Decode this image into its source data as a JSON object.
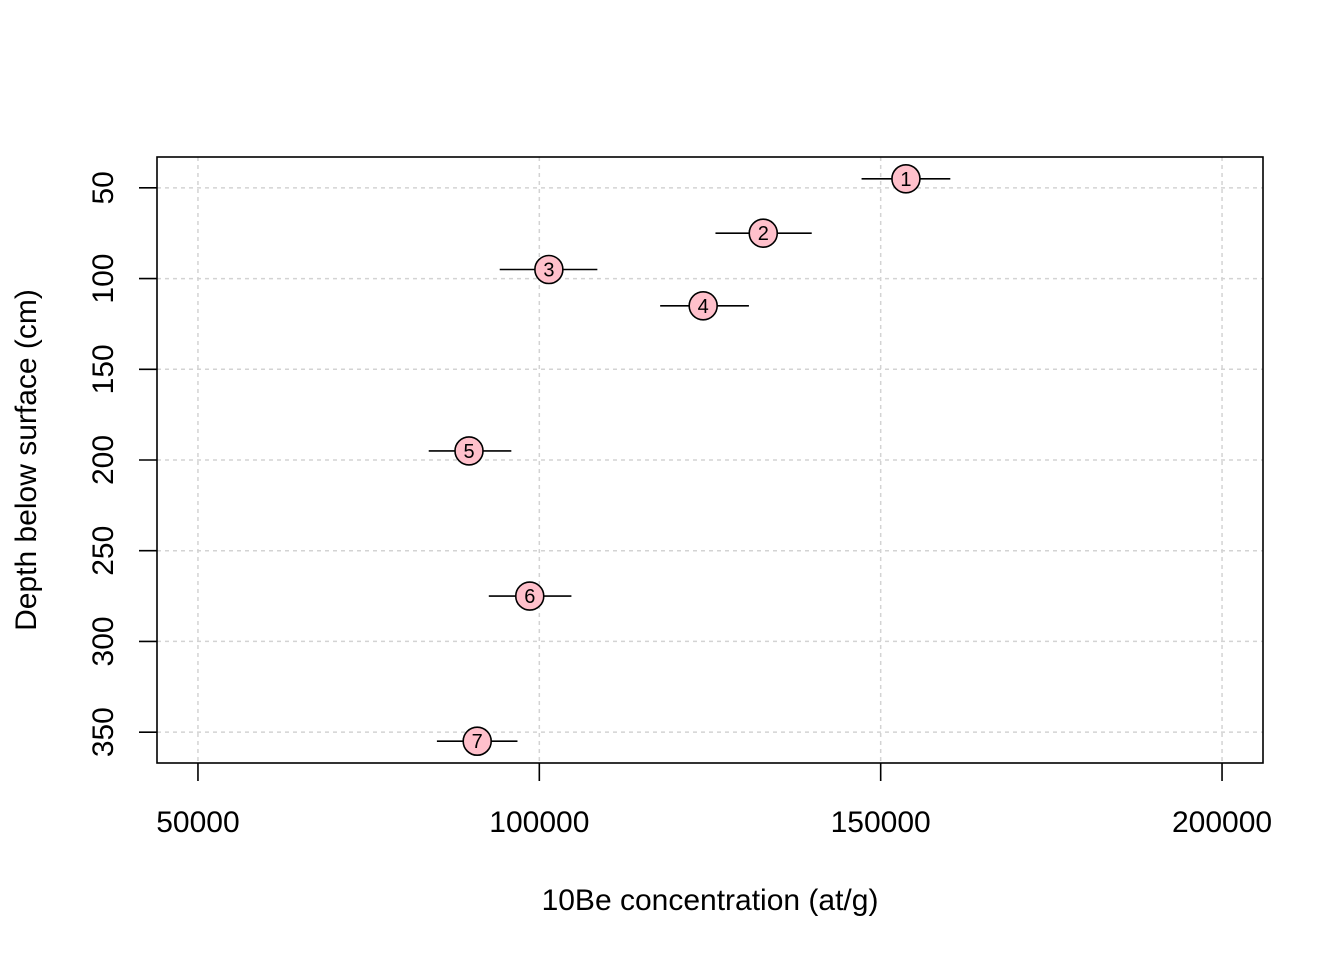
{
  "chart_data": {
    "type": "scatter",
    "title": "",
    "xlabel": "10Be concentration (at/g)",
    "ylabel": "Depth below surface (cm)",
    "xlim": [
      44000,
      206000
    ],
    "ylim": [
      367,
      33
    ],
    "y_reversed": true,
    "grid": true,
    "x_ticks": [
      50000,
      100000,
      150000,
      200000
    ],
    "x_tick_labels": [
      "50000",
      "100000",
      "150000",
      "200000"
    ],
    "y_ticks": [
      50,
      100,
      150,
      200,
      250,
      300,
      350
    ],
    "y_tick_labels": [
      "50",
      "100",
      "150",
      "200",
      "250",
      "300",
      "350"
    ],
    "marker_color": "#ffc0cb",
    "points": [
      {
        "label": "1",
        "x": 153700,
        "y": 45,
        "xerr_low": 147200,
        "xerr_high": 160200
      },
      {
        "label": "2",
        "x": 132800,
        "y": 75,
        "xerr_low": 125800,
        "xerr_high": 139900
      },
      {
        "label": "3",
        "x": 101400,
        "y": 95,
        "xerr_low": 94200,
        "xerr_high": 108500
      },
      {
        "label": "4",
        "x": 124000,
        "y": 115,
        "xerr_low": 117700,
        "xerr_high": 130700
      },
      {
        "label": "5",
        "x": 89700,
        "y": 195,
        "xerr_low": 83800,
        "xerr_high": 95900
      },
      {
        "label": "6",
        "x": 98600,
        "y": 275,
        "xerr_low": 92600,
        "xerr_high": 104700
      },
      {
        "label": "7",
        "x": 90900,
        "y": 355,
        "xerr_low": 85000,
        "xerr_high": 96800
      }
    ]
  }
}
